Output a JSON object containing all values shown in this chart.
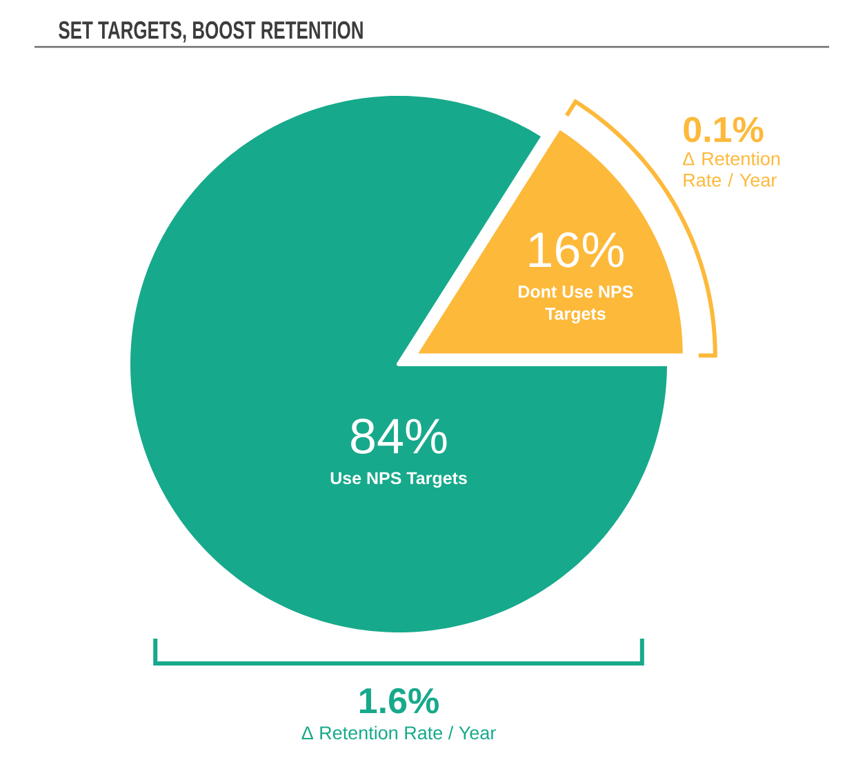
{
  "chart_data": {
    "type": "pie",
    "title": "SET TARGETS, BOOST RETENTION",
    "categories": [
      "Use NPS Targets",
      "Dont Use NPS Targets"
    ],
    "values": [
      84,
      16
    ],
    "colors": [
      "#17a98b",
      "#fdb93a"
    ],
    "value_labels": [
      "84%",
      "16%"
    ],
    "annotations": [
      "0.1%",
      "Δ Retention Rate / Year",
      "1.6%",
      "Δ Retention Rate / Year"
    ]
  }
}
